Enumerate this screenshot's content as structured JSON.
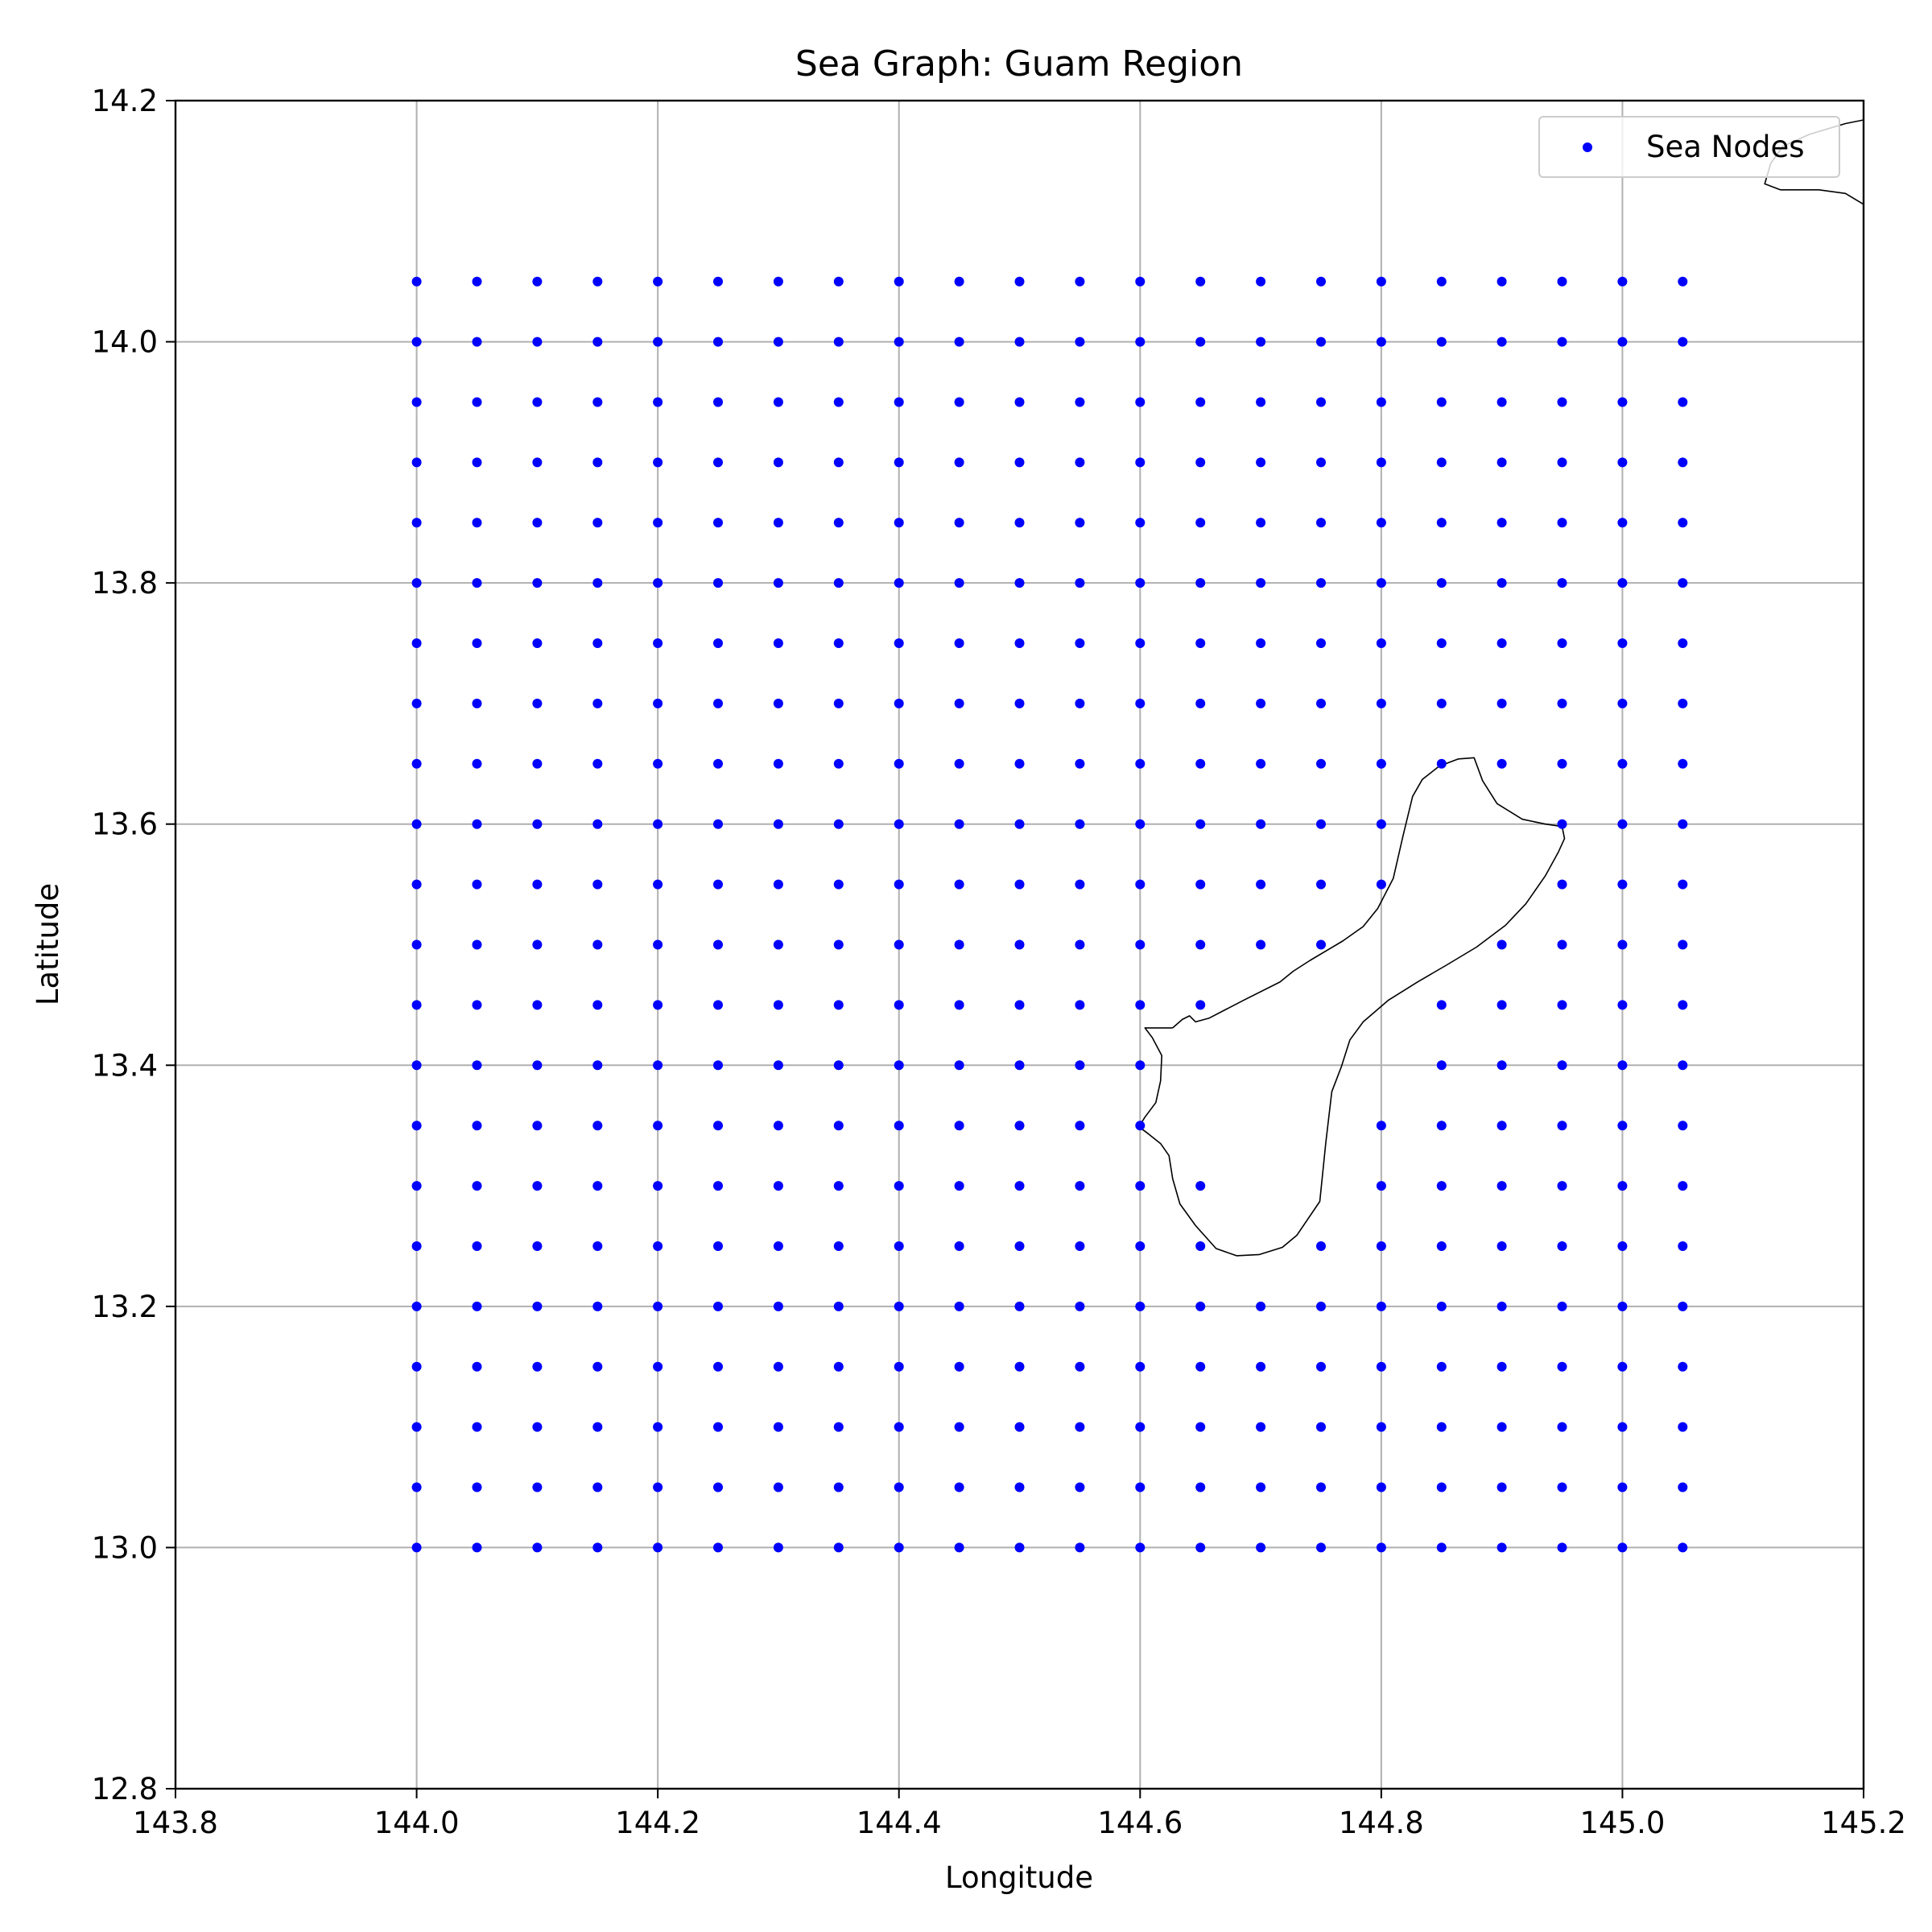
{
  "chart_data": {
    "type": "scatter",
    "title": "Sea Graph: Guam Region",
    "xlabel": "Longitude",
    "ylabel": "Latitude",
    "xlim": [
      143.8,
      145.2
    ],
    "ylim": [
      12.8,
      14.2
    ],
    "x_ticks": [
      "143.8",
      "144.0",
      "144.2",
      "144.4",
      "144.6",
      "144.8",
      "145.0",
      "145.2"
    ],
    "y_ticks": [
      "12.8",
      "13.0",
      "13.2",
      "13.4",
      "13.6",
      "13.8",
      "14.0",
      "14.2"
    ],
    "x_tick_values": [
      143.8,
      144.0,
      144.2,
      144.4,
      144.6,
      144.8,
      145.0,
      145.2
    ],
    "y_tick_values": [
      12.8,
      13.0,
      13.2,
      13.4,
      13.6,
      13.8,
      14.0,
      14.2
    ],
    "grid": true,
    "legend_position": "top-right",
    "series": [
      {
        "name": "Sea Nodes",
        "color": "#0000ff",
        "grid_x": {
          "start": 144.0,
          "stop": 145.05,
          "step": 0.05
        },
        "grid_y": {
          "start": 13.0,
          "stop": 14.05,
          "step": 0.05
        },
        "excluded_points": [
          [
            144.65,
            13.4
          ],
          [
            144.65,
            13.35
          ],
          [
            144.7,
            13.45
          ],
          [
            144.7,
            13.4
          ],
          [
            144.7,
            13.35
          ],
          [
            144.7,
            13.3
          ],
          [
            144.7,
            13.25
          ],
          [
            144.75,
            13.45
          ],
          [
            144.75,
            13.4
          ],
          [
            144.75,
            13.35
          ],
          [
            144.75,
            13.3
          ],
          [
            144.8,
            13.5
          ],
          [
            144.8,
            13.45
          ],
          [
            144.8,
            13.4
          ],
          [
            144.85,
            13.6
          ],
          [
            144.85,
            13.55
          ],
          [
            144.85,
            13.5
          ],
          [
            144.9,
            13.6
          ],
          [
            144.9,
            13.55
          ]
        ]
      }
    ],
    "coastlines": [
      {
        "name": "Guam",
        "color": "#000000",
        "points": [
          [
            144.627,
            13.431
          ],
          [
            144.635,
            13.438
          ],
          [
            144.641,
            13.441
          ],
          [
            144.646,
            13.436
          ],
          [
            144.657,
            13.439
          ],
          [
            144.686,
            13.454
          ],
          [
            144.716,
            13.469
          ],
          [
            144.727,
            13.478
          ],
          [
            144.741,
            13.487
          ],
          [
            144.768,
            13.503
          ],
          [
            144.785,
            13.515
          ],
          [
            144.797,
            13.53
          ],
          [
            144.81,
            13.555
          ],
          [
            144.818,
            13.59
          ],
          [
            144.826,
            13.623
          ],
          [
            144.834,
            13.637
          ],
          [
            144.848,
            13.648
          ],
          [
            144.864,
            13.654
          ],
          [
            144.877,
            13.655
          ],
          [
            144.884,
            13.636
          ],
          [
            144.896,
            13.617
          ],
          [
            144.917,
            13.604
          ],
          [
            144.936,
            13.6
          ],
          [
            144.95,
            13.598
          ],
          [
            144.952,
            13.588
          ],
          [
            144.947,
            13.577
          ],
          [
            144.936,
            13.557
          ],
          [
            144.92,
            13.534
          ],
          [
            144.903,
            13.516
          ],
          [
            144.879,
            13.498
          ],
          [
            144.854,
            13.483
          ],
          [
            144.83,
            13.469
          ],
          [
            144.806,
            13.454
          ],
          [
            144.785,
            13.436
          ],
          [
            144.774,
            13.421
          ],
          [
            144.767,
            13.399
          ],
          [
            144.759,
            13.378
          ],
          [
            144.754,
            13.336
          ],
          [
            144.749,
            13.287
          ],
          [
            144.73,
            13.259
          ],
          [
            144.718,
            13.249
          ],
          [
            144.699,
            13.243
          ],
          [
            144.68,
            13.242
          ],
          [
            144.663,
            13.248
          ],
          [
            144.646,
            13.267
          ],
          [
            144.633,
            13.285
          ],
          [
            144.627,
            13.306
          ],
          [
            144.624,
            13.325
          ],
          [
            144.617,
            13.335
          ],
          [
            144.607,
            13.343
          ],
          [
            144.599,
            13.349
          ],
          [
            144.604,
            13.357
          ],
          [
            144.613,
            13.369
          ],
          [
            144.617,
            13.387
          ],
          [
            144.618,
            13.408
          ],
          [
            144.61,
            13.423
          ],
          [
            144.604,
            13.431
          ],
          [
            144.627,
            13.431
          ]
        ]
      },
      {
        "name": "Rota",
        "color": "#000000",
        "points": [
          [
            145.2,
            14.184
          ],
          [
            145.185,
            14.181
          ],
          [
            145.155,
            14.172
          ],
          [
            145.133,
            14.162
          ],
          [
            145.123,
            14.148
          ],
          [
            145.118,
            14.131
          ],
          [
            145.131,
            14.126
          ],
          [
            145.163,
            14.126
          ],
          [
            145.185,
            14.123
          ],
          [
            145.2,
            14.114
          ]
        ]
      }
    ]
  }
}
